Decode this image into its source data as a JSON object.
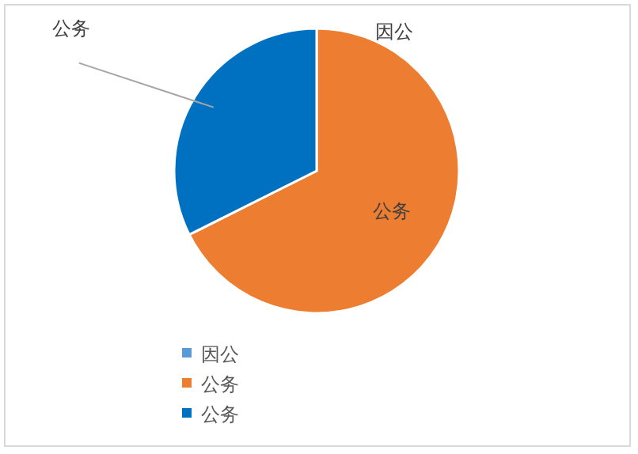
{
  "chart_data": {
    "type": "pie",
    "categories": [
      "因公",
      "公务",
      "公务"
    ],
    "values": [
      0,
      67.6,
      32.4
    ],
    "colors": [
      "#5b9bd5",
      "#ed7d31",
      "#0070c0"
    ],
    "legend": "bottom"
  }
}
